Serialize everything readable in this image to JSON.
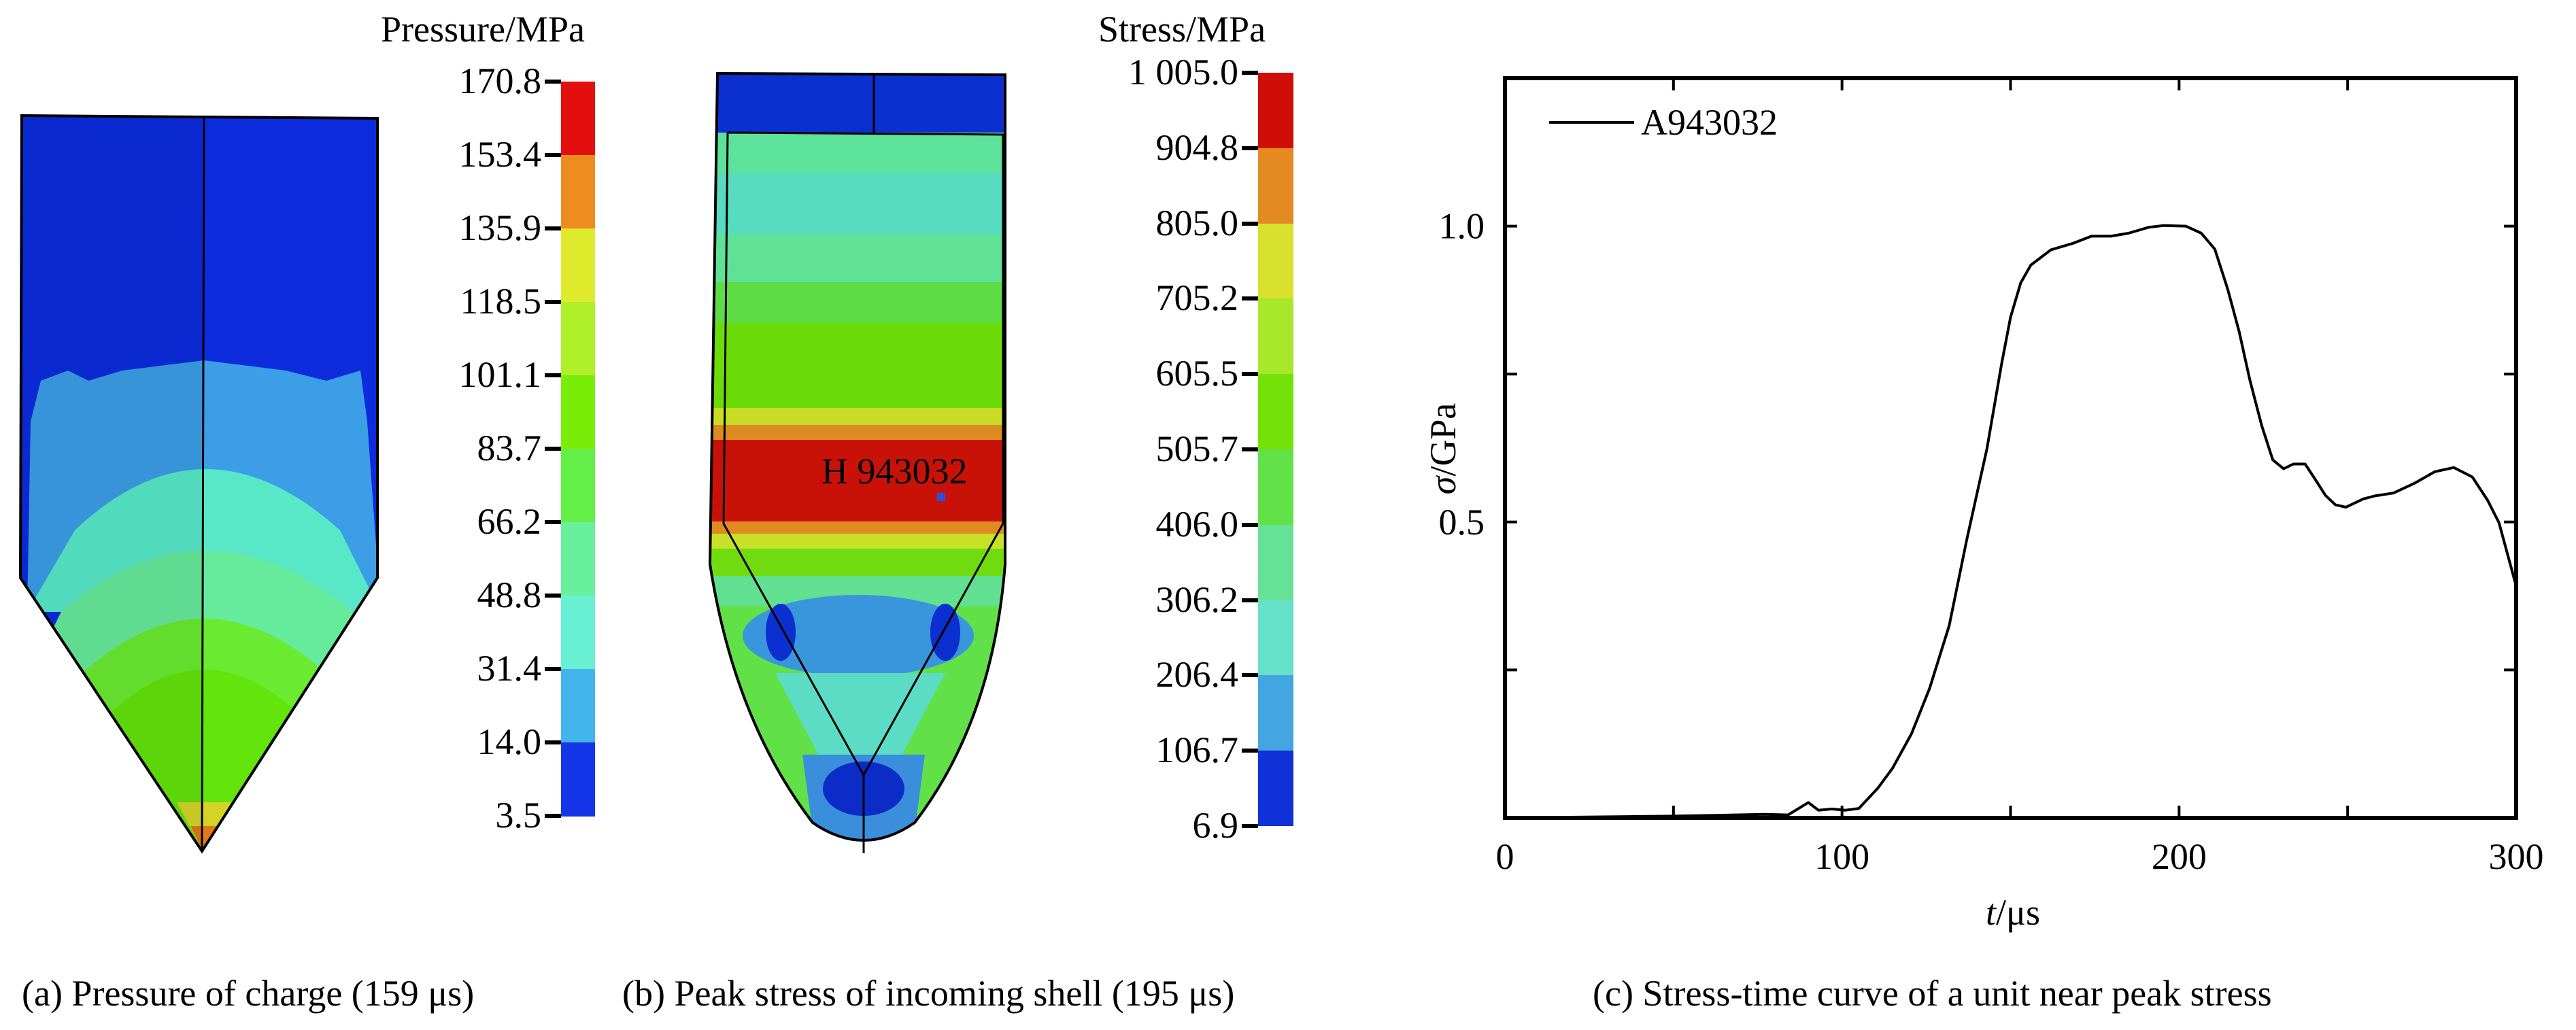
{
  "panels": {
    "a": {
      "caption": "(a) Pressure of charge (159 μs)",
      "colorbar": {
        "title": "Pressure/MPa",
        "ticks": [
          "170.8",
          "153.4",
          "135.9",
          "118.5",
          "101.1",
          "83.7",
          "66.2",
          "48.8",
          "31.4",
          "14.0",
          "3.5"
        ],
        "colors": [
          "#E30F0F",
          "#EE8C20",
          "#E0EA2C",
          "#B0F028",
          "#78EE08",
          "#64EE48",
          "#68F09C",
          "#68F0D4",
          "#44B4EC",
          "#1436E8"
        ]
      }
    },
    "b": {
      "caption": "(b) Peak stress of incoming shell (195 μs)",
      "node_label": "H 943032",
      "colorbar": {
        "title": "Stress/MPa",
        "ticks": [
          "1 005.0",
          "904.8",
          "805.0",
          "705.2",
          "605.5",
          "505.7",
          "406.0",
          "306.2",
          "206.4",
          "106.7",
          "6.9"
        ],
        "colors": [
          "#D00E08",
          "#E48A22",
          "#D8E22E",
          "#A8E82A",
          "#74E208",
          "#62E248",
          "#66E296",
          "#66E0C8",
          "#44A6E0",
          "#1030D8"
        ]
      }
    },
    "c": {
      "caption": "(c) Stress-time curve of a unit near peak stress"
    }
  },
  "chart_data": {
    "type": "line",
    "title": "",
    "xlabel_italic": "t",
    "xlabel_unit": "/μs",
    "ylabel_italic": "σ",
    "ylabel_unit": "/GPa",
    "xlim": [
      0,
      300
    ],
    "ylim": [
      0,
      1.25
    ],
    "xticks": [
      0,
      50,
      100,
      150,
      200,
      250,
      300
    ],
    "xtick_labels": [
      "0",
      "",
      "100",
      "",
      "200",
      "",
      "300"
    ],
    "yticks": [
      0,
      0.25,
      0.5,
      0.75,
      1.0
    ],
    "ytick_labels": [
      "",
      "",
      "0.5",
      "",
      "1.0"
    ],
    "grid": false,
    "legend": {
      "position": "top-left",
      "entries": [
        "A943032"
      ]
    },
    "series": [
      {
        "name": "A943032",
        "color": "#000000",
        "x": [
          0,
          50,
          77,
          84,
          90,
          93,
          97,
          101,
          105,
          110.6,
          115,
          120.6,
          126,
          131.8,
          137,
          143,
          147.4,
          150,
          153,
          156,
          162,
          168.6,
          174,
          179.8,
          185,
          191,
          195.4,
          202,
          206.6,
          210.6,
          214.4,
          217.8,
          221,
          224.5,
          227.8,
          231,
          233.9,
          237.4,
          240.5,
          243.4,
          246.4,
          249.5,
          254.6,
          258,
          263.6,
          270,
          275.9,
          281.5,
          287,
          291.5,
          294.9,
          300
        ],
        "y": [
          0.0,
          0.003,
          0.006,
          0.005,
          0.026,
          0.013,
          0.015,
          0.013,
          0.016,
          0.05,
          0.084,
          0.142,
          0.219,
          0.325,
          0.47,
          0.624,
          0.769,
          0.846,
          0.904,
          0.934,
          0.96,
          0.971,
          0.983,
          0.983,
          0.988,
          0.998,
          1.001,
          1.0,
          0.988,
          0.961,
          0.894,
          0.822,
          0.74,
          0.663,
          0.605,
          0.59,
          0.598,
          0.598,
          0.571,
          0.545,
          0.529,
          0.525,
          0.539,
          0.544,
          0.549,
          0.566,
          0.585,
          0.592,
          0.576,
          0.537,
          0.499,
          0.392
        ]
      }
    ]
  }
}
